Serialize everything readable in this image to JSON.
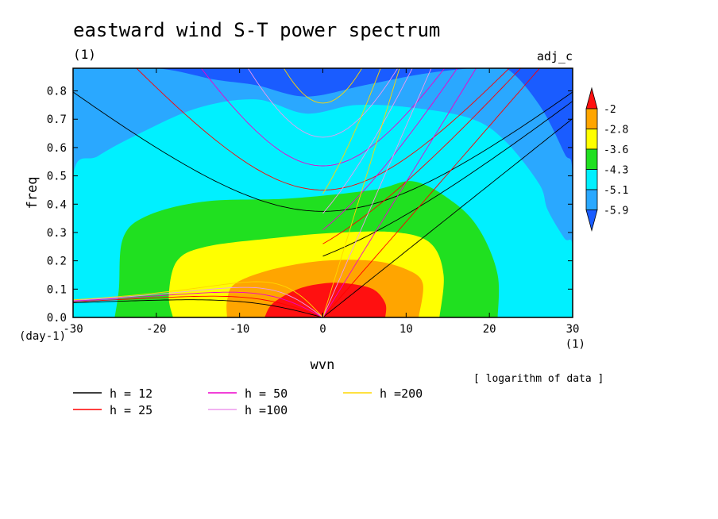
{
  "chart_data": {
    "type": "heatmap",
    "title": "eastward wind S-T power spectrum",
    "subtitle": "(1)",
    "case_label": "adj_c",
    "xlabel": "wvn",
    "ylabel": "freq",
    "x_unit": "(1)",
    "y_unit": "(day-1)",
    "xlim": [
      -30,
      30
    ],
    "ylim": [
      0,
      0.88
    ],
    "xticks": [
      "-30",
      "-20",
      "-10",
      "0",
      "10",
      "20",
      "30"
    ],
    "yticks": [
      "0.0",
      "0.1",
      "0.2",
      "0.3",
      "0.4",
      "0.5",
      "0.6",
      "0.7",
      "0.8"
    ],
    "note": "[ logarithm of data ]",
    "colorbar": {
      "levels": [
        "-2",
        "-2.8",
        "-3.6",
        "-4.3",
        "-5.1",
        "-5.9"
      ],
      "colors": [
        "#1a5cff",
        "#2aa8ff",
        "#00f0ff",
        "#20e020",
        "#ffff00",
        "#ffa500",
        "#ff1010"
      ]
    },
    "contour_bands": [
      {
        "level": "above -2",
        "color": "#ff1010",
        "points": [
          [
            -7,
            0
          ],
          [
            -6,
            0.05
          ],
          [
            -3,
            0.1
          ],
          [
            0,
            0.12
          ],
          [
            3,
            0.12
          ],
          [
            6,
            0.1
          ],
          [
            7.5,
            0.05
          ],
          [
            7.5,
            0
          ]
        ]
      },
      {
        "level": "-2.8 to -2",
        "color": "#ffa500",
        "points": [
          [
            -11.5,
            0
          ],
          [
            -11.5,
            0.06
          ],
          [
            -10.5,
            0.12
          ],
          [
            -6,
            0.17
          ],
          [
            0,
            0.2
          ],
          [
            6,
            0.2
          ],
          [
            10,
            0.17
          ],
          [
            12,
            0.12
          ],
          [
            11.5,
            0
          ]
        ]
      },
      {
        "level": "-3.6 to -2.8",
        "color": "#ffff00",
        "points": [
          [
            -18,
            0
          ],
          [
            -18.5,
            0.08
          ],
          [
            -17.5,
            0.2
          ],
          [
            -14,
            0.25
          ],
          [
            -6,
            0.28
          ],
          [
            2,
            0.3
          ],
          [
            9,
            0.3
          ],
          [
            13,
            0.26
          ],
          [
            14.5,
            0.15
          ],
          [
            14,
            0
          ]
        ]
      },
      {
        "level": "-4.3 to -3.6",
        "color": "#20e020",
        "points": [
          [
            -25,
            0
          ],
          [
            -24.5,
            0.1
          ],
          [
            -24,
            0.28
          ],
          [
            -21,
            0.36
          ],
          [
            -14,
            0.41
          ],
          [
            -4,
            0.42
          ],
          [
            6,
            0.45
          ],
          [
            11,
            0.48
          ],
          [
            16,
            0.4
          ],
          [
            19,
            0.3
          ],
          [
            21,
            0.15
          ],
          [
            21,
            0
          ]
        ]
      },
      {
        "level": "-5.1 to -4.3",
        "color": "#00f0ff",
        "points": [
          [
            -30,
            0
          ],
          [
            -30,
            0.5
          ],
          [
            -27,
            0.57
          ],
          [
            -22,
            0.65
          ],
          [
            -15,
            0.74
          ],
          [
            -8,
            0.77
          ],
          [
            -2,
            0.72
          ],
          [
            4,
            0.75
          ],
          [
            11,
            0.74
          ],
          [
            18,
            0.7
          ],
          [
            22,
            0.62
          ],
          [
            26,
            0.47
          ],
          [
            27,
            0.38
          ],
          [
            29,
            0.28
          ],
          [
            30,
            0.25
          ],
          [
            30,
            0
          ]
        ]
      },
      {
        "level": "-5.9 to -5.1",
        "color": "#2aa8ff",
        "points": [
          [
            -30,
            0
          ],
          [
            -30,
            0.88
          ],
          [
            -20,
            0.88
          ],
          [
            -13,
            0.84
          ],
          [
            -8,
            0.82
          ],
          [
            -2,
            0.78
          ],
          [
            5,
            0.82
          ],
          [
            12,
            0.86
          ],
          [
            18,
            0.88
          ],
          [
            22,
            0.88
          ],
          [
            26,
            0.75
          ],
          [
            29,
            0.58
          ],
          [
            30,
            0.5
          ],
          [
            30,
            0
          ]
        ]
      }
    ],
    "series": [
      {
        "name": "h = 12",
        "h": 12,
        "color": "#000000"
      },
      {
        "name": "h = 25",
        "h": 25,
        "color": "#ff0000"
      },
      {
        "name": "h = 50",
        "h": 50,
        "color": "#ee00cc"
      },
      {
        "name": "h =100",
        "h": 100,
        "color": "#ee99ee"
      },
      {
        "name": "h =200",
        "h": 200,
        "color": "#ffd700"
      }
    ]
  }
}
